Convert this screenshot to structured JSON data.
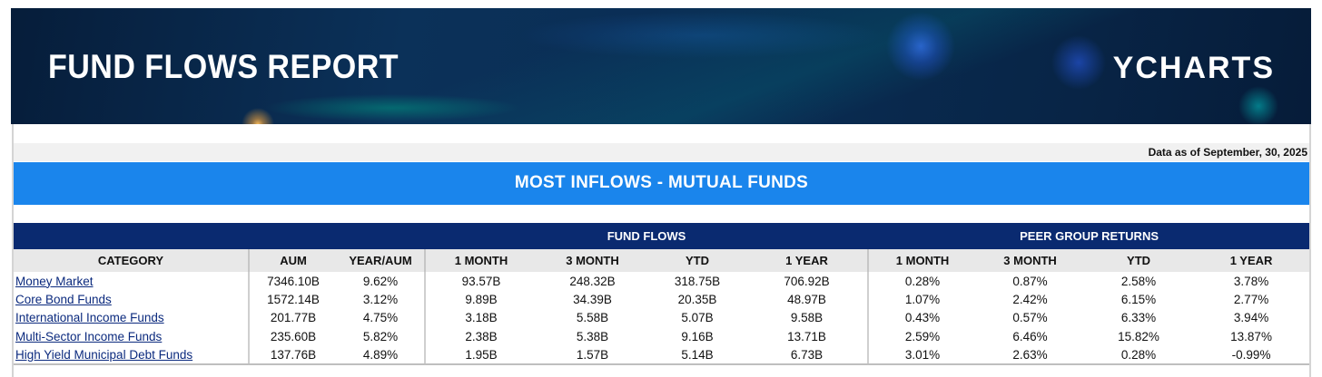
{
  "banner": {
    "title": "FUND FLOWS REPORT",
    "brand": "YCHARTS"
  },
  "as_of": "Data as of September, 30, 2025",
  "section_title": "MOST INFLOWS - MUTUAL FUNDS",
  "groups": {
    "fund_flows": "FUND FLOWS",
    "peer_group_returns": "PEER GROUP RETURNS"
  },
  "columns": [
    "CATEGORY",
    "AUM",
    "YEAR/AUM",
    "1 MONTH",
    "3 MONTH",
    "YTD",
    "1 YEAR",
    "1 MONTH",
    "3 MONTH",
    "YTD",
    "1 YEAR"
  ],
  "rows": [
    [
      "Money Market",
      "7346.10B",
      "9.62%",
      "93.57B",
      "248.32B",
      "318.75B",
      "706.92B",
      "0.28%",
      "0.87%",
      "2.58%",
      "3.78%"
    ],
    [
      "Core Bond Funds",
      "1572.14B",
      "3.12%",
      "9.89B",
      "34.39B",
      "20.35B",
      "48.97B",
      "1.07%",
      "2.42%",
      "6.15%",
      "2.77%"
    ],
    [
      "International Income Funds",
      "201.77B",
      "4.75%",
      "3.18B",
      "5.58B",
      "5.07B",
      "9.58B",
      "0.43%",
      "0.57%",
      "6.33%",
      "3.94%"
    ],
    [
      "Multi-Sector Income Funds",
      "235.60B",
      "5.82%",
      "2.38B",
      "5.38B",
      "9.16B",
      "13.71B",
      "2.59%",
      "6.46%",
      "15.82%",
      "13.87%"
    ],
    [
      "High Yield Municipal Debt Funds",
      "137.76B",
      "4.89%",
      "1.95B",
      "1.57B",
      "5.14B",
      "6.73B",
      "3.01%",
      "2.63%",
      "0.28%",
      "-0.99%"
    ]
  ],
  "colors": {
    "banner_bg": "#0b3159",
    "section_blue": "#1a85ec",
    "header_navy": "#0a2a70",
    "link": "#0b2a7e"
  }
}
